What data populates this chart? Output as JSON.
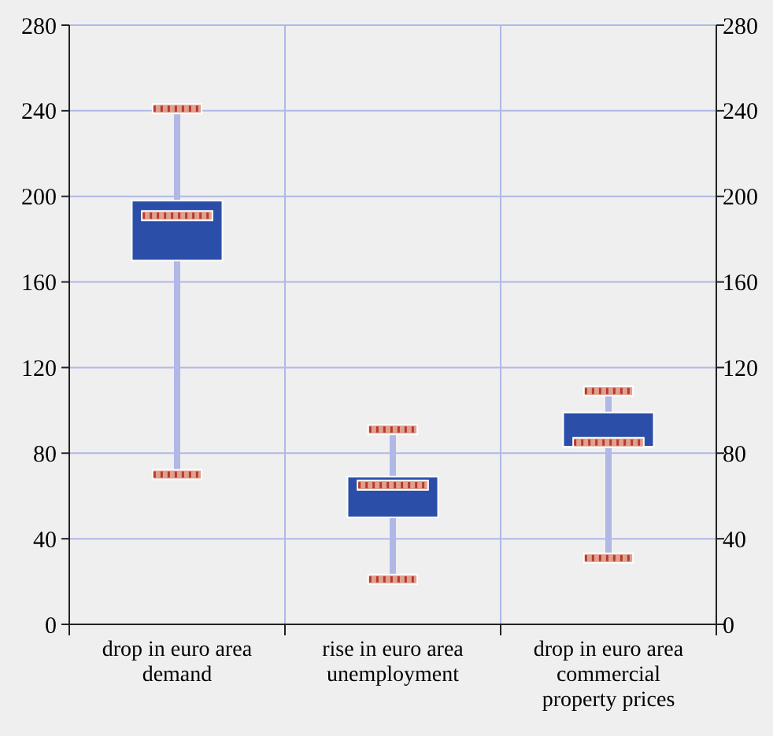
{
  "chart_data": {
    "type": "box",
    "categories": [
      "drop in euro area demand",
      "rise in euro area unemployment",
      "drop in euro area commercial property prices"
    ],
    "boxes": [
      {
        "low": 70,
        "q1": 170,
        "median": 191,
        "q3": 198,
        "high": 241
      },
      {
        "low": 21,
        "q1": 50,
        "median": 65,
        "q3": 69,
        "high": 91
      },
      {
        "low": 31,
        "q1": 83,
        "median": 85,
        "q3": 99,
        "high": 109
      }
    ],
    "color": "#2b4fa8",
    "ylim": [
      0,
      280
    ],
    "yticks": [
      0,
      40,
      80,
      120,
      160,
      200,
      240,
      280
    ],
    "y2lim": [
      0,
      280
    ],
    "y2ticks": [
      0,
      40,
      80,
      120,
      160,
      200,
      240,
      280
    ],
    "grid": true
  }
}
